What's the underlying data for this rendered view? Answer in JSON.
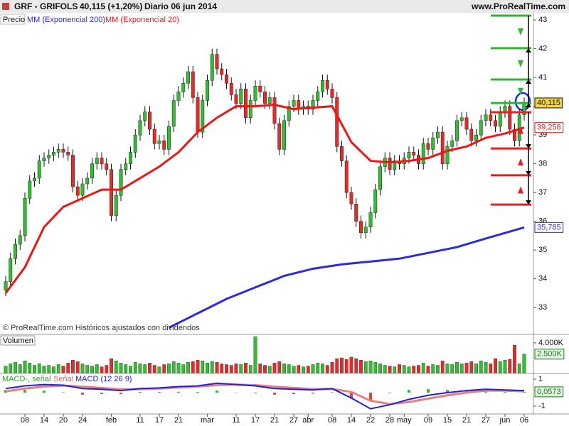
{
  "header": {
    "symbol": "GRF - GRIFOLS",
    "quote": "40,115 (+1,20%)",
    "period": "Diario 06 jun 2014",
    "site": "www.ProRealTime.com"
  },
  "note": "© ProRealTime.com Históricos ajustados con dividendos",
  "chart_data": [
    {
      "type": "candlestick",
      "ylim": [
        32.09,
        43.25
      ],
      "yticks": [
        33,
        34,
        35,
        36,
        37,
        38,
        39,
        40,
        41,
        42,
        43
      ],
      "xticks": [
        {
          "value": 4,
          "label": "08"
        },
        {
          "value": 8,
          "label": "14"
        },
        {
          "value": 12,
          "label": "20"
        },
        {
          "value": 16,
          "label": "24"
        },
        {
          "value": 22,
          "label": "feb"
        },
        {
          "value": 28,
          "label": "11"
        },
        {
          "value": 32,
          "label": "17"
        },
        {
          "value": 36,
          "label": "21"
        },
        {
          "value": 42,
          "label": "mar"
        },
        {
          "value": 48,
          "label": "11"
        },
        {
          "value": 52,
          "label": "17"
        },
        {
          "value": 56,
          "label": "21"
        },
        {
          "value": 60,
          "label": "27"
        },
        {
          "value": 63,
          "label": "abr"
        },
        {
          "value": 68,
          "label": "08"
        },
        {
          "value": 72,
          "label": "14"
        },
        {
          "value": 76,
          "label": "22"
        },
        {
          "value": 80,
          "label": "28"
        },
        {
          "value": 83,
          "label": "may"
        },
        {
          "value": 88,
          "label": "09"
        },
        {
          "value": 92,
          "label": "15"
        },
        {
          "value": 96,
          "label": "21"
        },
        {
          "value": 100,
          "label": "27"
        },
        {
          "value": 104,
          "label": "jun"
        },
        {
          "value": 108,
          "label": "06"
        }
      ],
      "upper_levels": {
        "color": "#2fb52f",
        "values": [
          43.15,
          42.02,
          40.93,
          40.11
        ]
      },
      "lower_levels": {
        "color": "#ee1c1c",
        "values": [
          39.79,
          38.53,
          37.6,
          36.58
        ]
      },
      "series": [
        {
          "name": "Precio",
          "type": "candlestick",
          "up_color": "#2fbf2f",
          "down_color": "#e52a2a",
          "last_label": "40,115",
          "open": [
            33.6,
            33.9,
            34.7,
            35.2,
            35.5,
            36.8,
            37.4,
            37.5,
            38.1,
            38.2,
            38.3,
            38.4,
            38.5,
            38.4,
            38.3,
            37.2,
            36.9,
            37.3,
            37.5,
            38.0,
            38.2,
            38.0,
            37.8,
            36.2,
            36.9,
            37.8,
            38.0,
            38.4,
            39.0,
            39.5,
            39.8,
            39.2,
            38.7,
            38.8,
            38.5,
            39.3,
            40.2,
            40.5,
            40.8,
            41.2,
            40.3,
            39.1,
            40.2,
            40.9,
            41.8,
            41.3,
            41.1,
            40.8,
            40.4,
            40.1,
            40.6,
            39.6,
            40.2,
            40.7,
            40.5,
            40.1,
            40.3,
            39.4,
            38.5,
            39.5,
            40.0,
            40.2,
            39.9,
            40.0,
            39.9,
            40.2,
            40.5,
            40.9,
            40.6,
            40.3,
            38.6,
            38.1,
            37.0,
            36.6,
            36.0,
            35.6,
            35.8,
            36.3,
            37.1,
            37.9,
            38.2,
            37.8,
            38.1,
            38.0,
            38.2,
            38.4,
            38.3,
            38.0,
            38.7,
            38.5,
            38.9,
            39.1,
            38.0,
            38.6,
            38.8,
            39.5,
            39.6,
            39.2,
            38.8,
            39.0,
            39.5,
            39.7,
            39.5,
            39.3,
            39.8,
            40.0,
            39.2,
            38.8,
            39.7
          ],
          "high": [
            34.1,
            34.9,
            35.4,
            35.7,
            37.0,
            37.6,
            37.7,
            38.3,
            38.4,
            38.5,
            38.6,
            38.7,
            38.7,
            38.6,
            38.5,
            37.4,
            37.5,
            37.7,
            38.2,
            38.4,
            38.4,
            38.2,
            38.0,
            37.1,
            38.0,
            38.2,
            38.6,
            39.2,
            39.7,
            40.0,
            40.0,
            39.4,
            39.0,
            39.0,
            39.5,
            40.4,
            40.7,
            41.0,
            41.4,
            41.4,
            40.5,
            40.4,
            41.1,
            42.0,
            42.0,
            41.5,
            41.3,
            41.0,
            40.6,
            40.8,
            40.8,
            40.4,
            40.9,
            40.9,
            40.7,
            40.5,
            40.5,
            39.6,
            39.7,
            40.2,
            40.4,
            40.4,
            40.2,
            40.2,
            40.4,
            40.7,
            41.1,
            41.1,
            40.8,
            40.5,
            38.8,
            38.3,
            37.2,
            36.8,
            36.2,
            36.0,
            36.5,
            37.3,
            38.1,
            38.4,
            38.4,
            38.3,
            38.3,
            38.4,
            38.6,
            38.6,
            38.5,
            38.9,
            38.9,
            39.1,
            39.3,
            39.3,
            38.8,
            39.0,
            39.7,
            39.8,
            39.8,
            39.4,
            39.2,
            39.7,
            39.9,
            39.9,
            39.7,
            40.0,
            40.2,
            40.2,
            39.4,
            39.9,
            40.3
          ],
          "low": [
            33.4,
            33.7,
            34.5,
            35.0,
            35.3,
            36.6,
            37.2,
            37.3,
            37.9,
            38.0,
            38.1,
            38.2,
            38.2,
            38.1,
            37.0,
            36.7,
            36.7,
            37.1,
            37.3,
            37.8,
            37.8,
            37.6,
            36.0,
            36.0,
            36.7,
            37.6,
            37.8,
            38.2,
            38.8,
            39.3,
            39.0,
            38.5,
            38.5,
            38.3,
            38.3,
            39.1,
            40.0,
            40.3,
            40.6,
            40.1,
            38.9,
            38.9,
            40.0,
            40.7,
            41.1,
            40.9,
            40.6,
            40.2,
            39.9,
            39.9,
            39.4,
            39.4,
            40.0,
            40.3,
            39.9,
            39.9,
            39.2,
            38.3,
            38.3,
            39.3,
            39.8,
            39.7,
            39.7,
            39.7,
            39.7,
            40.0,
            40.3,
            40.4,
            40.1,
            38.4,
            37.9,
            36.8,
            36.4,
            35.8,
            35.4,
            35.4,
            35.6,
            36.1,
            36.9,
            37.7,
            37.6,
            37.6,
            37.8,
            37.8,
            38.0,
            38.1,
            37.8,
            37.8,
            38.3,
            38.3,
            38.7,
            37.8,
            37.8,
            38.4,
            38.6,
            39.3,
            39.0,
            38.6,
            38.6,
            38.8,
            39.3,
            39.3,
            39.1,
            39.1,
            39.6,
            39.0,
            38.6,
            38.6,
            39.5
          ],
          "close": [
            33.9,
            34.7,
            35.2,
            35.5,
            36.8,
            37.4,
            37.5,
            38.1,
            38.2,
            38.3,
            38.4,
            38.5,
            38.4,
            38.3,
            37.2,
            36.9,
            37.3,
            37.5,
            38.0,
            38.2,
            38.0,
            37.8,
            36.2,
            36.9,
            37.8,
            38.0,
            38.4,
            39.0,
            39.5,
            39.8,
            39.2,
            38.7,
            38.8,
            38.5,
            39.3,
            40.2,
            40.5,
            40.8,
            41.2,
            40.3,
            39.1,
            40.2,
            40.9,
            41.8,
            41.3,
            41.1,
            40.8,
            40.4,
            40.1,
            40.6,
            39.6,
            40.2,
            40.7,
            40.5,
            40.1,
            40.3,
            39.4,
            38.5,
            39.5,
            40.0,
            40.2,
            39.9,
            40.0,
            39.9,
            40.2,
            40.5,
            40.9,
            40.6,
            40.3,
            38.6,
            38.1,
            37.0,
            36.6,
            36.0,
            35.6,
            35.8,
            36.3,
            37.1,
            37.9,
            38.2,
            37.8,
            38.1,
            38.0,
            38.2,
            38.4,
            38.3,
            38.0,
            38.7,
            38.5,
            38.9,
            39.1,
            38.0,
            38.6,
            38.8,
            39.5,
            39.6,
            39.2,
            38.8,
            39.0,
            39.5,
            39.7,
            39.5,
            39.3,
            39.8,
            40.0,
            39.2,
            38.8,
            39.7,
            40.115
          ]
        },
        {
          "name": "MM (Exponencial 200)",
          "type": "line",
          "color": "#2b2bdc",
          "last_label": "35,785",
          "x": [
            34,
            40,
            46,
            52,
            58,
            64,
            70,
            76,
            82,
            88,
            94,
            100,
            108
          ],
          "values": [
            32.3,
            32.8,
            33.3,
            33.7,
            34.1,
            34.35,
            34.5,
            34.6,
            34.7,
            34.9,
            35.1,
            35.4,
            35.785
          ]
        },
        {
          "name": "MM (Exponencial 20)",
          "type": "line",
          "color": "#ec1616",
          "last_label": "39,258",
          "x": [
            0,
            4,
            8,
            12,
            16,
            20,
            24,
            28,
            32,
            36,
            40,
            44,
            48,
            52,
            56,
            60,
            64,
            68,
            72,
            76,
            80,
            84,
            88,
            92,
            96,
            100,
            104,
            108
          ],
          "values": [
            33.5,
            34.4,
            35.8,
            36.5,
            36.8,
            37.1,
            37.1,
            37.5,
            37.9,
            38.4,
            39.1,
            39.6,
            40.0,
            40.0,
            40.05,
            39.9,
            39.95,
            40.0,
            38.75,
            38.1,
            38.05,
            38.1,
            38.2,
            38.45,
            38.6,
            38.9,
            39.05,
            39.258
          ]
        }
      ]
    },
    {
      "type": "bar",
      "title": "Volumen",
      "ylim": [
        0,
        5050
      ],
      "yticks": [
        {
          "value": 4000,
          "label": "4.000K"
        }
      ],
      "last_label": "2.500K",
      "values": [
        900,
        1200,
        1400,
        1100,
        1600,
        1300,
        1000,
        1200,
        900,
        1000,
        800,
        1100,
        900,
        1300,
        1700,
        1500,
        1200,
        1000,
        900,
        1100,
        800,
        1000,
        1900,
        1600,
        1300,
        1100,
        900,
        1400,
        1200,
        1100,
        1300,
        1000,
        800,
        1100,
        1200,
        1500,
        1300,
        1100,
        1400,
        1500,
        1700,
        1600,
        1300,
        1500,
        1400,
        1200,
        1100,
        1000,
        1200,
        1100,
        1300,
        1000,
        4850,
        1200,
        1000,
        900,
        1300,
        1500,
        1200,
        1100,
        900,
        1000,
        800,
        900,
        1100,
        1300,
        1200,
        1000,
        1400,
        1900,
        2000,
        1800,
        2100,
        1900,
        1700,
        1500,
        1600,
        1400,
        1200,
        1000,
        900,
        800,
        1100,
        1000,
        800,
        900,
        1000,
        1300,
        900,
        1100,
        1000,
        1600,
        1200,
        1100,
        1400,
        1200,
        1300,
        1500,
        1200,
        1600,
        1400,
        1200,
        1900,
        1500,
        1700,
        1800,
        3700,
        1200,
        2500
      ]
    },
    {
      "type": "macd",
      "ylim": [
        -1.53,
        1.37
      ],
      "yticks": [
        1,
        -1
      ],
      "x": [
        0,
        4,
        8,
        12,
        16,
        20,
        24,
        28,
        32,
        36,
        40,
        44,
        48,
        52,
        56,
        60,
        64,
        68,
        72,
        76,
        80,
        84,
        88,
        92,
        96,
        100,
        104,
        108
      ],
      "series": [
        {
          "name": "MACD-, señal",
          "kind": "histogram",
          "color": "#33b833",
          "negative_color": "#e64040",
          "last_label": "0,0573",
          "values": [
            0.2,
            0.2,
            0.15,
            0.03,
            -0.15,
            -0.1,
            -0.1,
            0.05,
            0.05,
            0.07,
            0.05,
            0.15,
            0.0,
            -0.05,
            -0.15,
            -0.1,
            -0.07,
            0.03,
            -0.45,
            -0.6,
            -0.05,
            0.2,
            0.25,
            0.2,
            0.15,
            0.1,
            0.05,
            0.0573
          ]
        },
        {
          "name": "Señal",
          "kind": "line",
          "color": "#e88080",
          "values": [
            0.1,
            0.3,
            0.45,
            0.52,
            0.45,
            0.35,
            0.25,
            0.25,
            0.3,
            0.38,
            0.45,
            0.55,
            0.6,
            0.55,
            0.45,
            0.35,
            0.27,
            0.27,
            0.05,
            -0.6,
            -0.85,
            -0.7,
            -0.45,
            -0.2,
            0.0,
            0.15,
            0.15,
            0.0927
          ]
        },
        {
          "name": "MACD (12 26 9)",
          "kind": "line",
          "color": "#2020e0",
          "values": [
            0.3,
            0.5,
            0.6,
            0.55,
            0.3,
            0.25,
            0.15,
            0.3,
            0.35,
            0.45,
            0.5,
            0.7,
            0.6,
            0.5,
            0.3,
            0.25,
            0.2,
            0.3,
            -0.4,
            -1.2,
            -0.9,
            -0.5,
            -0.2,
            0.0,
            0.15,
            0.25,
            0.2,
            0.15
          ]
        }
      ]
    }
  ]
}
